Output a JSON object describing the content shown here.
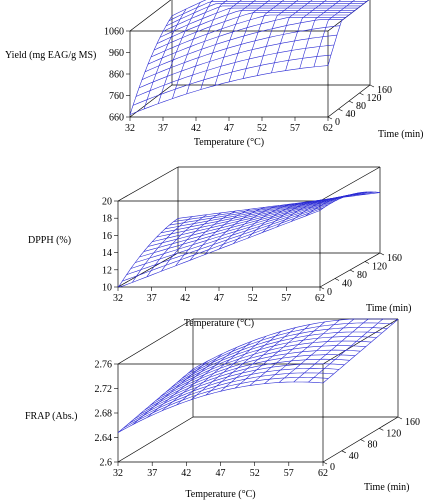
{
  "chart_data": [
    {
      "type": "surface",
      "ylabel": "Yield (mg EAG/g MS)",
      "xlabel": "Temperature (°C)",
      "zlabel": "Time (min)",
      "x_ticks": [
        "32",
        "37",
        "42",
        "47",
        "52",
        "57",
        "62"
      ],
      "z_ticks": [
        "0",
        "40",
        "80",
        "120",
        "160"
      ],
      "y_ticks": [
        "660",
        "760",
        "860",
        "960",
        "1060"
      ],
      "xlim": [
        32,
        62
      ],
      "zlim": [
        0,
        160
      ],
      "ylim": [
        660,
        1060
      ],
      "mesh_color": "#2b2bd4",
      "surface": {
        "a0": 671,
        "ax": 12.7,
        "az": 2.9,
        "axx": -0.17,
        "azz": -0.006,
        "axz": 0.017
      }
    },
    {
      "type": "surface",
      "ylabel": "DPPH (%)",
      "xlabel": "Temperature (°C)",
      "zlabel": "Time (min)",
      "x_ticks": [
        "32",
        "37",
        "42",
        "47",
        "52",
        "57",
        "62"
      ],
      "z_ticks": [
        "0",
        "40",
        "80",
        "120",
        "160"
      ],
      "y_ticks": [
        "10",
        "12",
        "14",
        "16",
        "18",
        "20"
      ],
      "xlim": [
        32,
        62
      ],
      "zlim": [
        0,
        160
      ],
      "ylim": [
        10,
        20
      ],
      "mesh_color": "#2b2bd4",
      "surface": {
        "a0": 9.9,
        "ax": 0.3,
        "az": 0.045,
        "axx": 0,
        "azz": -0.00012,
        "axz": -0.00125
      }
    },
    {
      "type": "surface",
      "ylabel": "FRAP (Abs.)",
      "xlabel": "Temperature (°C)",
      "zlabel": "Time (min)",
      "x_ticks": [
        "32",
        "37",
        "42",
        "47",
        "52",
        "57",
        "62"
      ],
      "z_ticks": [
        "0",
        "40",
        "80",
        "120",
        "160"
      ],
      "y_ticks": [
        "2.6",
        "2.64",
        "2.68",
        "2.72",
        "2.76"
      ],
      "xlim": [
        32,
        62
      ],
      "zlim": [
        0,
        160
      ],
      "ylim": [
        2.6,
        2.76
      ],
      "mesh_color": "#2b2bd4",
      "surface": {
        "a0": 2.648,
        "ax": 0.0063,
        "az": 0.00019,
        "axx": -0.00012,
        "azz": 0,
        "axz": 0
      }
    }
  ]
}
